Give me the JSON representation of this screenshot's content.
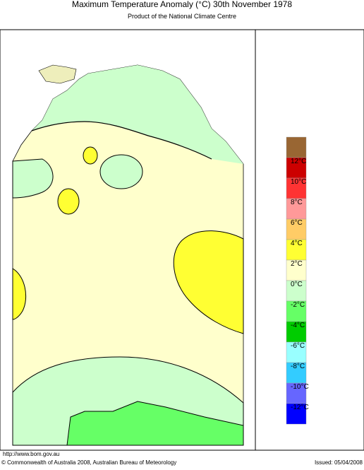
{
  "header": {
    "title": "Maximum Temperature Anomaly (°C)  30th November 1978",
    "subtitle": "Product of the National Climate Centre"
  },
  "legend": {
    "items": [
      {
        "color": "#996633"
      },
      {
        "color": "#cc0000"
      },
      {
        "color": "#ff3333"
      },
      {
        "color": "#ff9999"
      },
      {
        "color": "#ffcc66"
      },
      {
        "color": "#ffff33"
      },
      {
        "color": "#ffffcc"
      },
      {
        "color": "#ccffcc"
      },
      {
        "color": "#66ff66"
      },
      {
        "color": "#00cc00"
      },
      {
        "color": "#99ffff"
      },
      {
        "color": "#33ccff"
      },
      {
        "color": "#6666ff"
      },
      {
        "color": "#0000ff"
      }
    ],
    "labels": [
      "12°C",
      "10°C",
      "8°C",
      "6°C",
      "4°C",
      "2°C",
      "0°C",
      "-2°C",
      "-4°C",
      "-6°C",
      "-8°C",
      "-10°C",
      "-12°C"
    ]
  },
  "footer": {
    "url": "http://www.bom.gov.au",
    "copyright": "© Commonwealth of Australia 2008, Australian Bureau of Meteorology",
    "issued": "Issued: 05/04/2008"
  }
}
